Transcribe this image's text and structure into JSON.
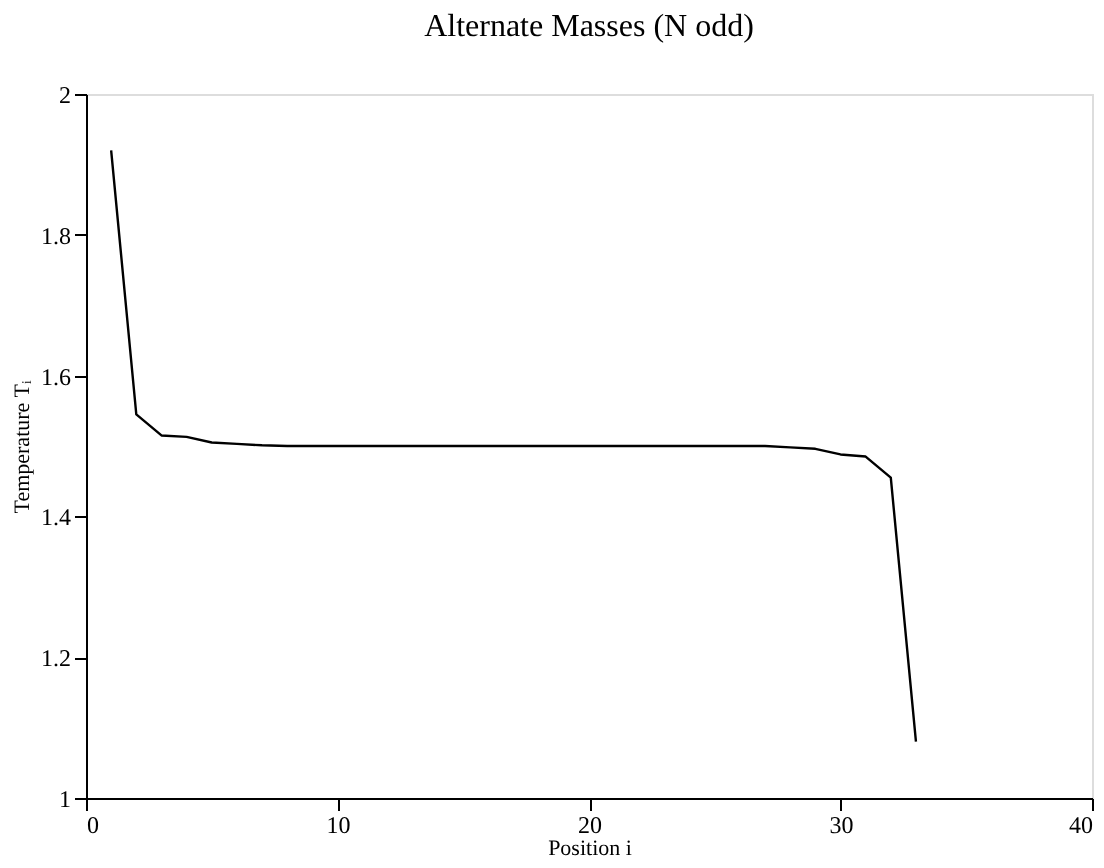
{
  "chart_data": {
    "type": "line",
    "title": "Alternate Masses (N odd)",
    "xlabel": "Position i",
    "ylabel": "Temperature Tᵢ",
    "x": [
      1,
      2,
      3,
      4,
      5,
      6,
      7,
      8,
      9,
      10,
      11,
      12,
      13,
      14,
      15,
      16,
      17,
      18,
      19,
      20,
      21,
      22,
      23,
      24,
      25,
      26,
      27,
      28,
      29,
      30,
      31,
      32,
      33
    ],
    "series": [
      {
        "color": "#000000",
        "values": [
          1.92,
          1.545,
          1.515,
          1.513,
          1.505,
          1.503,
          1.501,
          1.5,
          1.5,
          1.5,
          1.5,
          1.5,
          1.5,
          1.5,
          1.5,
          1.5,
          1.5,
          1.5,
          1.5,
          1.5,
          1.5,
          1.5,
          1.5,
          1.5,
          1.5,
          1.5,
          1.5,
          1.498,
          1.496,
          1.488,
          1.485,
          1.455,
          1.08
        ]
      }
    ],
    "xlim": [
      0,
      40
    ],
    "xticks": [
      0,
      10,
      20,
      30,
      40
    ],
    "ylim": [
      1,
      2
    ],
    "yticks": [
      1,
      1.2,
      1.4,
      1.6,
      1.8,
      2
    ],
    "grid": false,
    "marker": "none",
    "line_style": "solid"
  }
}
